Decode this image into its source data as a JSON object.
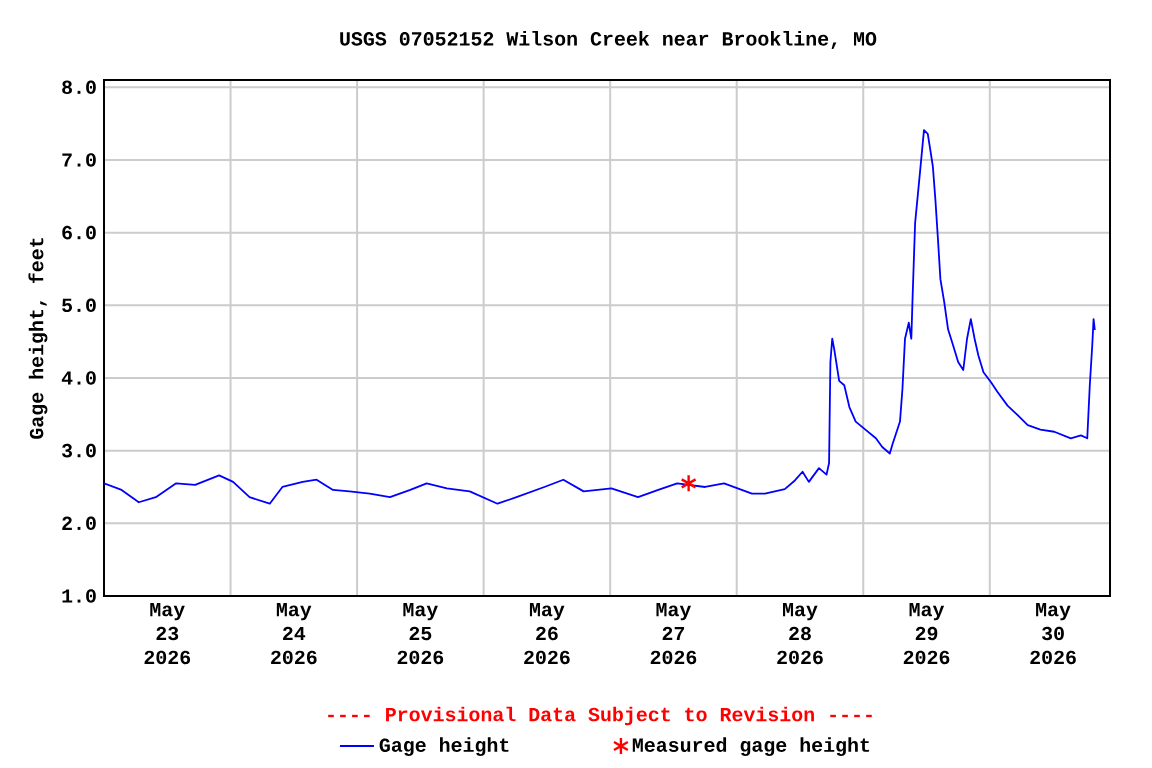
{
  "chart_data": {
    "type": "line",
    "title": "USGS 07052152 Wilson Creek near Brookline, MO",
    "ylabel": "Gage height, feet",
    "annotations": [
      "---- Provisional Data Subject to Revision ----"
    ],
    "xlim": [
      "2026-05-23T00:00",
      "2026-05-30T22:48"
    ],
    "xticks": [
      {
        "value": "2026-05-23T12:00",
        "label": "May 23 2026"
      },
      {
        "value": "2026-05-24T00:00",
        "label": null
      },
      {
        "value": "2026-05-24T12:00",
        "label": "May 24 2026"
      },
      {
        "value": "2026-05-25T00:00",
        "label": null
      },
      {
        "value": "2026-05-25T12:00",
        "label": "May 25 2026"
      },
      {
        "value": "2026-05-26T00:00",
        "label": null
      },
      {
        "value": "2026-05-26T12:00",
        "label": "May 26 2026"
      },
      {
        "value": "2026-05-27T00:00",
        "label": null
      },
      {
        "value": "2026-05-27T12:00",
        "label": "May 27 2026"
      },
      {
        "value": "2026-05-28T00:00",
        "label": null
      },
      {
        "value": "2026-05-28T12:00",
        "label": "May 28 2026"
      },
      {
        "value": "2026-05-29T00:00",
        "label": null
      },
      {
        "value": "2026-05-29T12:00",
        "label": "May 29 2026"
      },
      {
        "value": "2026-05-30T00:00",
        "label": null
      },
      {
        "value": "2026-05-30T12:00",
        "label": "May 30 2026"
      }
    ],
    "ylim": [
      1,
      8.1
    ],
    "yticks": [
      {
        "value": 1,
        "label": "1.0"
      },
      {
        "value": 2,
        "label": "2.0"
      },
      {
        "value": 3,
        "label": "3.0"
      },
      {
        "value": 4,
        "label": "4.0"
      },
      {
        "value": 5,
        "label": "5.0"
      },
      {
        "value": 6,
        "label": "6.0"
      },
      {
        "value": 7,
        "label": "7.0"
      },
      {
        "value": 8,
        "label": "8.0"
      }
    ],
    "grid": true,
    "legend": "bottom",
    "series": [
      {
        "name": "Gage height",
        "color": "#0000ff",
        "marker": "none",
        "x": [
          "2026-05-23T00:00",
          "2026-05-23T03:20",
          "2026-05-23T06:36",
          "2026-05-23T09:50",
          "2026-05-23T13:41",
          "2026-05-23T17:17",
          "2026-05-23T21:50",
          "2026-05-24T00:29",
          "2026-05-24T03:36",
          "2026-05-24T07:26",
          "2026-05-24T09:50",
          "2026-05-24T13:41",
          "2026-05-24T16:19",
          "2026-05-24T19:26",
          "2026-05-24T22:34",
          "2026-05-25T02:24",
          "2026-05-25T06:14",
          "2026-05-25T10:05",
          "2026-05-25T13:12",
          "2026-05-25T17:02",
          "2026-05-25T21:22",
          "2026-05-26T02:38",
          "2026-05-26T06:14",
          "2026-05-26T11:31",
          "2026-05-26T15:07",
          "2026-05-26T18:58",
          "2026-05-27T00:14",
          "2026-05-27T05:17",
          "2026-05-27T09:07",
          "2026-05-27T12:43",
          "2026-05-27T18:00",
          "2026-05-27T21:36",
          "2026-05-28T02:53",
          "2026-05-28T05:21",
          "2026-05-28T09:07",
          "2026-05-28T11:02",
          "2026-05-28T12:29",
          "2026-05-28T13:41",
          "2026-05-28T15:36",
          "2026-05-28T17:02",
          "2026-05-28T17:31",
          "2026-05-28T17:46",
          "2026-05-28T18:07",
          "2026-05-28T18:29",
          "2026-05-28T19:26",
          "2026-05-28T20:24",
          "2026-05-28T21:22",
          "2026-05-28T22:34",
          "2026-05-29T00:14",
          "2026-05-29T02:24",
          "2026-05-29T03:36",
          "2026-05-29T05:02",
          "2026-05-29T05:31",
          "2026-05-29T06:58",
          "2026-05-29T07:26",
          "2026-05-29T07:55",
          "2026-05-29T08:38",
          "2026-05-29T09:07",
          "2026-05-29T09:22",
          "2026-05-29T09:50",
          "2026-05-29T10:48",
          "2026-05-29T11:31",
          "2026-05-29T12:14",
          "2026-05-29T12:43",
          "2026-05-29T13:12",
          "2026-05-29T13:41",
          "2026-05-29T14:10",
          "2026-05-29T14:38",
          "2026-05-29T15:22",
          "2026-05-29T16:05",
          "2026-05-29T17:02",
          "2026-05-29T18:00",
          "2026-05-29T18:58",
          "2026-05-29T19:41",
          "2026-05-29T20:24",
          "2026-05-29T21:07",
          "2026-05-29T21:50",
          "2026-05-29T22:48",
          "2026-05-30T00:14",
          "2026-05-30T01:26",
          "2026-05-30T03:22",
          "2026-05-30T05:17",
          "2026-05-30T07:12",
          "2026-05-30T09:36",
          "2026-05-30T12:14",
          "2026-05-30T15:22",
          "2026-05-30T17:17",
          "2026-05-30T18:29",
          "2026-05-30T18:58",
          "2026-05-30T19:26",
          "2026-05-30T19:41",
          "2026-05-30T19:55"
        ],
        "values": [
          2.55,
          2.46,
          2.29,
          2.36,
          2.55,
          2.53,
          2.66,
          2.57,
          2.36,
          2.27,
          2.5,
          2.57,
          2.6,
          2.46,
          2.44,
          2.41,
          2.36,
          2.46,
          2.55,
          2.48,
          2.44,
          2.27,
          2.36,
          2.5,
          2.6,
          2.44,
          2.48,
          2.36,
          2.46,
          2.55,
          2.5,
          2.55,
          2.41,
          2.41,
          2.47,
          2.59,
          2.71,
          2.57,
          2.76,
          2.67,
          2.83,
          4.22,
          4.54,
          4.4,
          3.96,
          3.9,
          3.6,
          3.4,
          3.3,
          3.17,
          3.05,
          2.96,
          3.08,
          3.4,
          3.85,
          4.54,
          4.76,
          4.54,
          5.13,
          6.13,
          6.86,
          7.41,
          7.36,
          7.14,
          6.91,
          6.45,
          5.91,
          5.36,
          5.04,
          4.67,
          4.45,
          4.22,
          4.11,
          4.54,
          4.81,
          4.54,
          4.31,
          4.08,
          3.94,
          3.81,
          3.62,
          3.49,
          3.35,
          3.29,
          3.26,
          3.17,
          3.21,
          3.17,
          3.9,
          4.45,
          4.81,
          4.66
        ]
      },
      {
        "name": "Measured gage height",
        "color": "#ff0000",
        "type": "scatter",
        "marker": "cross",
        "x": [
          "2026-05-27T14:53"
        ],
        "values": [
          2.55
        ]
      }
    ]
  }
}
